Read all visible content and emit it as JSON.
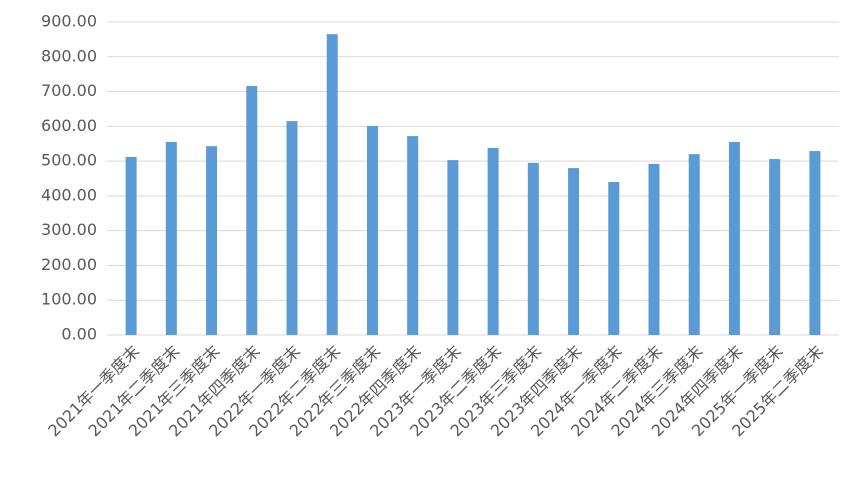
{
  "chart_data": {
    "type": "bar",
    "categories": [
      "2021年一季度末",
      "2021年二季度末",
      "2021年三季度末",
      "2021年四季度末",
      "2022年一季度末",
      "2022年二季度末",
      "2022年三季度末",
      "2022年四季度末",
      "2023年一季度末",
      "2023年二季度末",
      "2023年三季度末",
      "2023年四季度末",
      "2024年一季度末",
      "2024年二季度末",
      "2024年三季度末",
      "2024年四季度末",
      "2025年一季度末",
      "2025年二季度末"
    ],
    "values": [
      512,
      555,
      543,
      716,
      615,
      865,
      601,
      572,
      503,
      538,
      495,
      480,
      440,
      492,
      520,
      555,
      506,
      529
    ],
    "color": "#5b9bd5",
    "ylim": [
      0,
      900
    ],
    "yticks": [
      {
        "value": 0,
        "label": "0.00"
      },
      {
        "value": 100,
        "label": "100.00"
      },
      {
        "value": 200,
        "label": "200.00"
      },
      {
        "value": 300,
        "label": "300.00"
      },
      {
        "value": 400,
        "label": "400.00"
      },
      {
        "value": 500,
        "label": "500.00"
      },
      {
        "value": 600,
        "label": "600.00"
      },
      {
        "value": 700,
        "label": "700.00"
      },
      {
        "value": 800,
        "label": "800.00"
      },
      {
        "value": 900,
        "label": "900.00"
      }
    ],
    "grid": true
  }
}
